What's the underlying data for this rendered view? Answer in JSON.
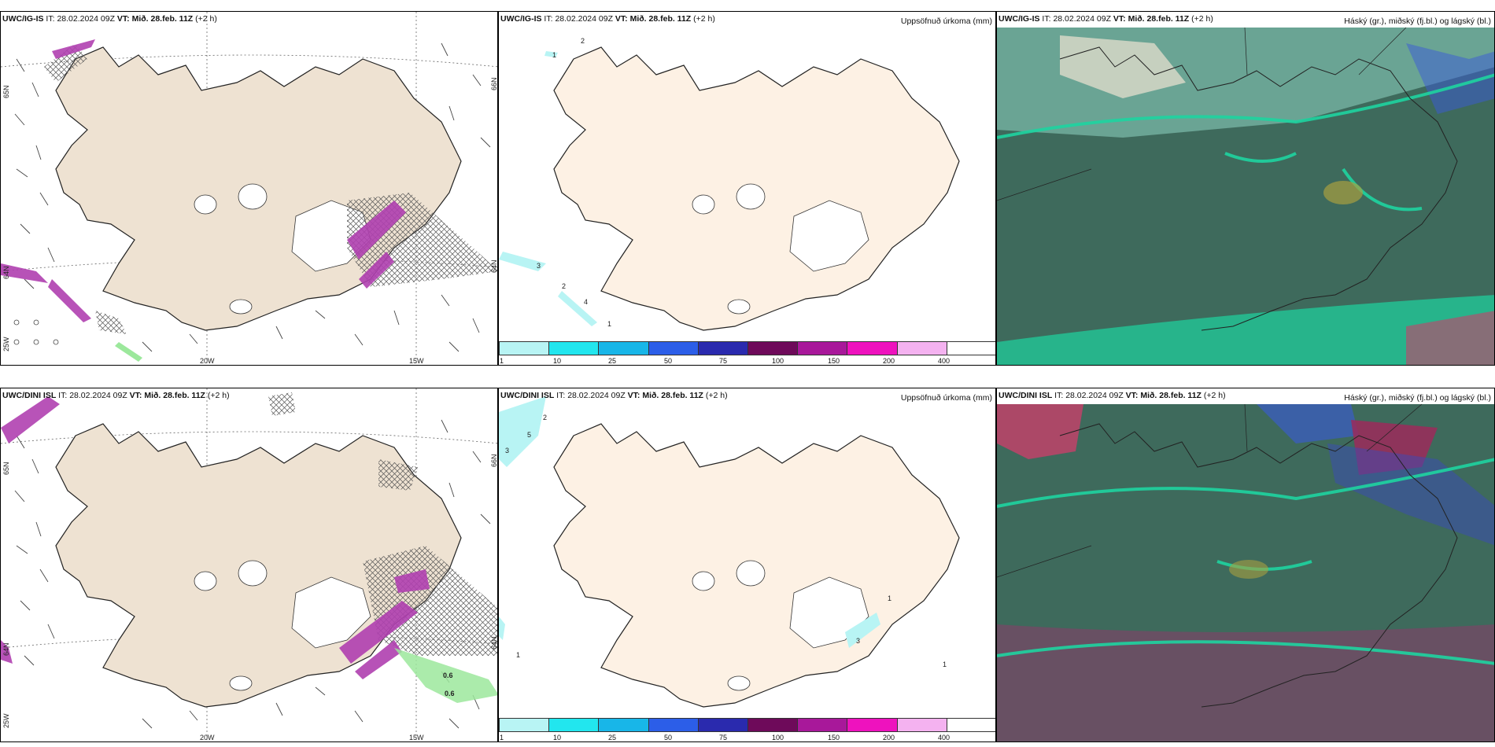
{
  "rows": [
    {
      "model": "UWC/IG-IS",
      "it_label": "IT:",
      "it_value": "28.02.2024 09Z",
      "vt_label": "VT:",
      "vt_value": "Mið. 28.feb. 11Z",
      "lead": "(+2 h)"
    },
    {
      "model": "UWC/DINI ISL",
      "it_label": "IT:",
      "it_value": "28.02.2024 09Z",
      "vt_label": "VT:",
      "vt_value": "Mið. 28.feb. 11Z",
      "lead": "(+2 h)"
    }
  ],
  "precip_title": "Uppsöfnuð úrkoma (mm)",
  "cloud_title": "Háský (gr.), miðský (fj.bl.) og lágský (bl.)",
  "colorbar": {
    "labels": [
      "1",
      "10",
      "25",
      "50",
      "75",
      "100",
      "150",
      "200",
      "400"
    ],
    "colors": [
      "#b8f4f4",
      "#22e6ee",
      "#18b6e8",
      "#2c5ee8",
      "#2a2aae",
      "#6e0a5a",
      "#a8189a",
      "#ee12be",
      "#f4b2f0"
    ]
  },
  "axis": {
    "lon": [
      "20W",
      "15W"
    ],
    "lat_left_top": "65N",
    "lat_left_mid": "64N",
    "lat_left_low": "25W",
    "lat_right_top": "66N",
    "lat_right_mid": "64N"
  },
  "precip_labels_top": [
    "2",
    "1",
    "3",
    "2",
    "4",
    "1"
  ],
  "precip_labels_bottom": [
    "2",
    "5",
    "3",
    "1",
    "1",
    "3",
    "1"
  ],
  "left_bottom_values": [
    "0.6",
    "0.6"
  ],
  "colors": {
    "land": "#eee2d2",
    "land_precip": "#fdf1e4",
    "ice": "#ffffff",
    "precip_magenta": "#b040b0",
    "green_precip": "#9ce89c",
    "cloud_base": "#3e6a5c",
    "cloud_teal": "#1ed4a0"
  }
}
